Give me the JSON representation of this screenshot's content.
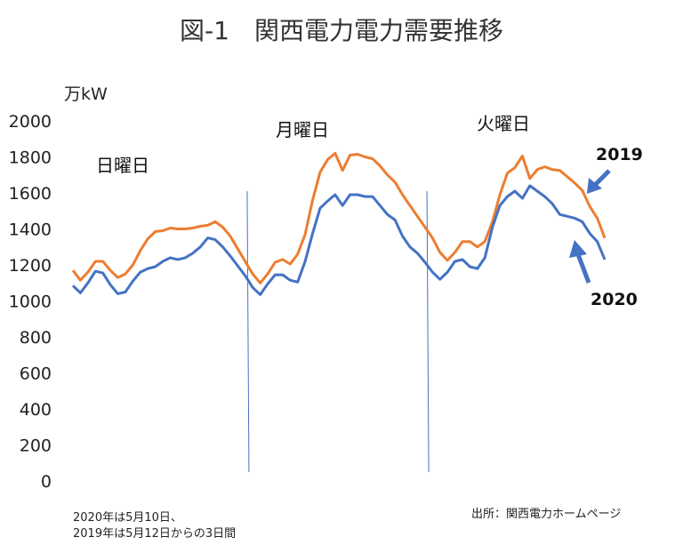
{
  "title": "図-1　関西電力電力需要推移",
  "unit_label": "万kW",
  "day_labels": [
    "日曜日",
    "月曜日",
    "火曜日"
  ],
  "year_labels": [
    "2019",
    "2020"
  ],
  "footnote_lines": [
    "2020年は5月10日、",
    "2019年は5月12日からの3日間"
  ],
  "source": "出所：関西電力ホームページ",
  "colors": {
    "s2019": "#ED7D31",
    "s2020": "#4472C4",
    "divider": "#4472C4"
  },
  "chart_data": {
    "type": "line",
    "title": "図-1　関西電力電力需要推移",
    "ylabel": "万kW",
    "xlabel": "",
    "ylim": [
      0,
      2000
    ],
    "yticks": [
      0,
      200,
      400,
      600,
      800,
      1000,
      1200,
      1400,
      1600,
      1800,
      2000
    ],
    "grid": false,
    "x": [
      1,
      2,
      3,
      4,
      5,
      6,
      7,
      8,
      9,
      10,
      11,
      12,
      13,
      14,
      15,
      16,
      17,
      18,
      19,
      20,
      21,
      22,
      23,
      24,
      25,
      26,
      27,
      28,
      29,
      30,
      31,
      32,
      33,
      34,
      35,
      36,
      37,
      38,
      39,
      40,
      41,
      42,
      43,
      44,
      45,
      46,
      47,
      48,
      49,
      50,
      51,
      52,
      53,
      54,
      55,
      56,
      57,
      58,
      59,
      60,
      61,
      62,
      63,
      64,
      65,
      66,
      67,
      68,
      69,
      70,
      71,
      72
    ],
    "day_boundaries": [
      24.5,
      48.5
    ],
    "series": [
      {
        "name": "2019",
        "values": [
          1170,
          1115,
          1160,
          1220,
          1220,
          1170,
          1130,
          1150,
          1200,
          1280,
          1345,
          1385,
          1390,
          1405,
          1400,
          1400,
          1405,
          1415,
          1420,
          1440,
          1410,
          1360,
          1290,
          1220,
          1150,
          1100,
          1150,
          1215,
          1230,
          1205,
          1260,
          1370,
          1560,
          1715,
          1785,
          1820,
          1725,
          1810,
          1815,
          1800,
          1790,
          1750,
          1700,
          1660,
          1590,
          1530,
          1470,
          1410,
          1350,
          1270,
          1225,
          1270,
          1330,
          1330,
          1300,
          1330,
          1440,
          1590,
          1710,
          1740,
          1805,
          1680,
          1730,
          1745,
          1730,
          1725,
          1690,
          1655,
          1615,
          1525,
          1460,
          1350
        ]
      },
      {
        "name": "2020",
        "values": [
          1085,
          1045,
          1100,
          1165,
          1155,
          1090,
          1040,
          1050,
          1110,
          1160,
          1180,
          1190,
          1220,
          1240,
          1230,
          1240,
          1265,
          1300,
          1350,
          1340,
          1300,
          1250,
          1195,
          1140,
          1075,
          1035,
          1095,
          1145,
          1145,
          1115,
          1105,
          1220,
          1375,
          1515,
          1555,
          1590,
          1530,
          1590,
          1590,
          1580,
          1580,
          1530,
          1480,
          1450,
          1360,
          1300,
          1265,
          1215,
          1160,
          1120,
          1160,
          1220,
          1230,
          1190,
          1180,
          1240,
          1410,
          1530,
          1580,
          1610,
          1570,
          1640,
          1610,
          1580,
          1540,
          1480,
          1470,
          1460,
          1440,
          1375,
          1330,
          1230
        ]
      }
    ]
  }
}
